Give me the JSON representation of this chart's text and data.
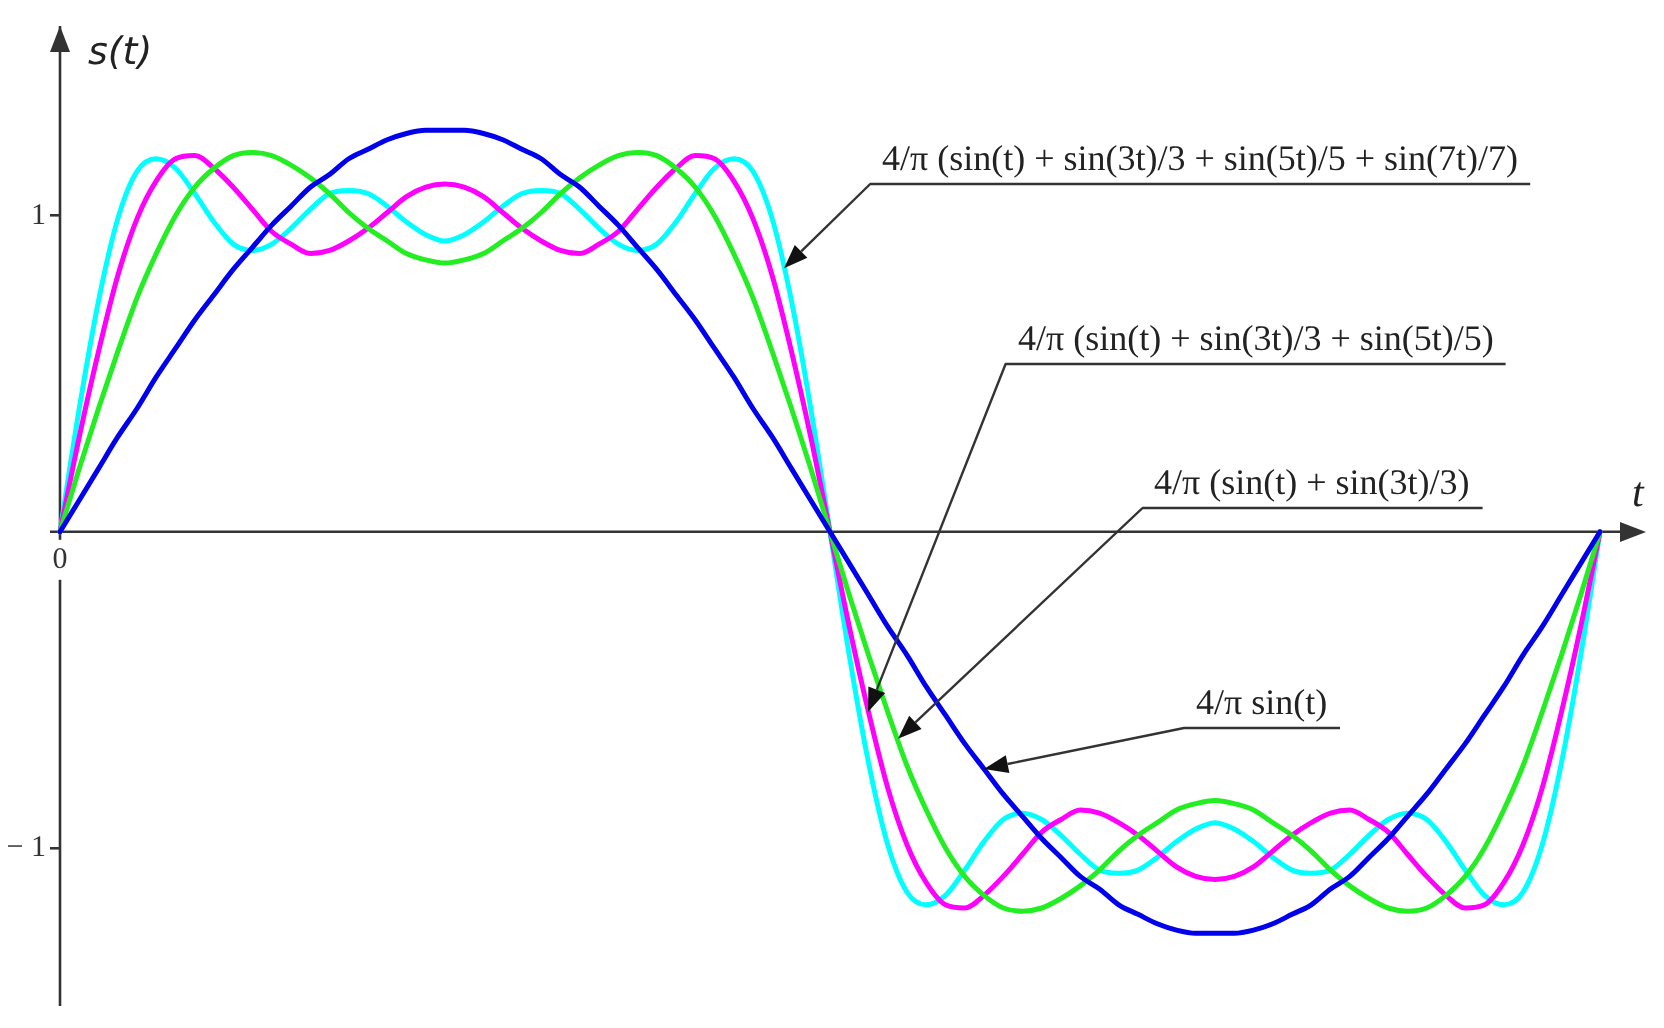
{
  "chart_data": {
    "type": "line",
    "xlabel": "t",
    "ylabel": "s(t)",
    "categories": [
      "0",
      null,
      null,
      null,
      null,
      null,
      null,
      null,
      null,
      null,
      null,
      null,
      null,
      null,
      null,
      null,
      null,
      null,
      null,
      null,
      null,
      null,
      null,
      null,
      null,
      null,
      null,
      null,
      null,
      null,
      null,
      null,
      null,
      null,
      null,
      null,
      null,
      null,
      null,
      null,
      null,
      null,
      null,
      null,
      null,
      null,
      null,
      null,
      null,
      null,
      null,
      null,
      null,
      null,
      null,
      null,
      null,
      null,
      null,
      null,
      null,
      null,
      null,
      null,
      null,
      null,
      null,
      null,
      null,
      null,
      null,
      null,
      null,
      null,
      null,
      null,
      null,
      null,
      null,
      null,
      null
    ],
    "ylim": [
      -1.5,
      1.6
    ],
    "yticks": [
      1,
      {
        "value": -1,
        "label": "− 1"
      }
    ],
    "annotations": [
      "4/π (sin(t) + sin(3t)/3 + sin(5t)/5 + sin(7t)/7)",
      "4/π (sin(t) + sin(3t)/3 + sin(5t)/5)",
      "4/π (sin(t) + sin(3t)/3)",
      "4/π sin(t)"
    ],
    "series": [
      {
        "color": "#0000ee",
        "values": [
          0,
          0.1,
          0.2,
          0.3,
          0.39,
          0.49,
          0.58,
          0.67,
          0.75,
          0.83,
          0.9,
          0.97,
          1.03,
          1.09,
          1.13,
          1.18,
          1.21,
          1.24,
          1.26,
          1.27,
          1.27,
          1.27,
          1.26,
          1.24,
          1.21,
          1.18,
          1.13,
          1.09,
          1.03,
          0.97,
          0.9,
          0.83,
          0.75,
          0.67,
          0.58,
          0.49,
          0.39,
          0.3,
          0.2,
          0.1,
          0,
          -0.1,
          -0.2,
          -0.3,
          -0.39,
          -0.49,
          -0.58,
          -0.67,
          -0.75,
          -0.83,
          -0.9,
          -0.97,
          -1.03,
          -1.09,
          -1.13,
          -1.18,
          -1.21,
          -1.24,
          -1.26,
          -1.27,
          -1.27,
          -1.27,
          -1.26,
          -1.24,
          -1.21,
          -1.18,
          -1.13,
          -1.09,
          -1.03,
          -0.97,
          -0.9,
          -0.83,
          -0.75,
          -0.67,
          -0.58,
          -0.49,
          -0.39,
          -0.3,
          -0.2,
          -0.1,
          0
        ]
      },
      {
        "color": "#22ee22",
        "values": [
          0,
          0.2,
          0.39,
          0.57,
          0.74,
          0.88,
          1,
          1.09,
          1.15,
          1.19,
          1.2,
          1.19,
          1.16,
          1.12,
          1.07,
          1.01,
          0.96,
          0.92,
          0.88,
          0.86,
          0.85,
          0.86,
          0.88,
          0.92,
          0.96,
          1.01,
          1.07,
          1.12,
          1.16,
          1.19,
          1.2,
          1.19,
          1.15,
          1.09,
          1,
          0.88,
          0.74,
          0.57,
          0.39,
          0.2,
          0,
          -0.2,
          -0.39,
          -0.57,
          -0.74,
          -0.88,
          -1,
          -1.09,
          -1.15,
          -1.19,
          -1.2,
          -1.19,
          -1.16,
          -1.12,
          -1.07,
          -1.01,
          -0.96,
          -0.92,
          -0.88,
          -0.86,
          -0.85,
          -0.86,
          -0.88,
          -0.92,
          -0.96,
          -1.01,
          -1.07,
          -1.12,
          -1.16,
          -1.19,
          -1.2,
          -1.19,
          -1.15,
          -1.09,
          -1,
          -0.88,
          -0.74,
          -0.57,
          -0.39,
          -0.2,
          0
        ]
      },
      {
        "color": "#ff00ff",
        "values": [
          0,
          0.3,
          0.57,
          0.81,
          0.99,
          1.11,
          1.18,
          1.19,
          1.15,
          1.09,
          1.02,
          0.95,
          0.91,
          0.88,
          0.89,
          0.92,
          0.96,
          1.01,
          1.06,
          1.09,
          1.1,
          1.09,
          1.06,
          1.01,
          0.96,
          0.92,
          0.89,
          0.88,
          0.91,
          0.95,
          1.02,
          1.09,
          1.15,
          1.19,
          1.18,
          1.11,
          0.99,
          0.81,
          0.57,
          0.3,
          0,
          -0.3,
          -0.57,
          -0.81,
          -0.99,
          -1.11,
          -1.18,
          -1.19,
          -1.15,
          -1.09,
          -1.02,
          -0.95,
          -0.91,
          -0.88,
          -0.89,
          -0.92,
          -0.96,
          -1.01,
          -1.06,
          -1.09,
          -1.1,
          -1.09,
          -1.06,
          -1.01,
          -0.96,
          -0.92,
          -0.89,
          -0.88,
          -0.91,
          -0.95,
          -1.02,
          -1.09,
          -1.15,
          -1.19,
          -1.18,
          -1.11,
          -0.99,
          -0.81,
          -0.57,
          -0.3,
          0
        ]
      },
      {
        "color": "#00ffff",
        "values": [
          0,
          0.39,
          0.73,
          0.99,
          1.14,
          1.18,
          1.15,
          1.07,
          0.98,
          0.91,
          0.89,
          0.91,
          0.96,
          1.02,
          1.07,
          1.08,
          1.07,
          1.03,
          0.98,
          0.94,
          0.92,
          0.94,
          0.98,
          1.03,
          1.07,
          1.08,
          1.07,
          1.02,
          0.96,
          0.91,
          0.89,
          0.91,
          0.98,
          1.07,
          1.15,
          1.18,
          1.14,
          0.99,
          0.73,
          0.39,
          0,
          -0.39,
          -0.73,
          -0.99,
          -1.14,
          -1.18,
          -1.15,
          -1.07,
          -0.98,
          -0.91,
          -0.89,
          -0.91,
          -0.96,
          -1.02,
          -1.07,
          -1.08,
          -1.07,
          -1.03,
          -0.98,
          -0.94,
          -0.92,
          -0.94,
          -0.98,
          -1.03,
          -1.07,
          -1.08,
          -1.07,
          -1.02,
          -0.96,
          -0.91,
          -0.89,
          -0.91,
          -0.98,
          -1.07,
          -1.15,
          -1.18,
          -1.14,
          -0.99,
          -0.73,
          -0.39,
          0
        ]
      }
    ]
  }
}
